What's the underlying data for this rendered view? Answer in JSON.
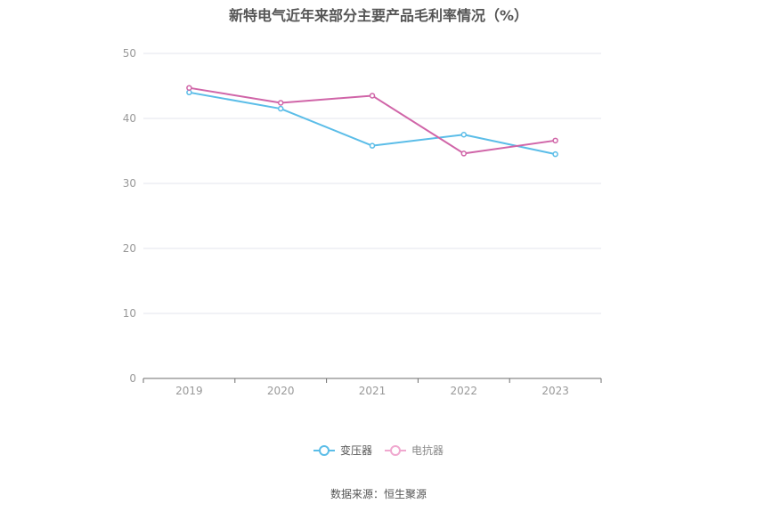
{
  "chart_data": {
    "type": "line",
    "title": "新特电气近年来部分主要产品毛利率情况（%）",
    "categories": [
      "2019",
      "2020",
      "2021",
      "2022",
      "2023"
    ],
    "series": [
      {
        "name": "变压器",
        "color": "#5bbde8",
        "values": [
          44.0,
          41.5,
          35.8,
          37.5,
          34.5
        ]
      },
      {
        "name": "电抗器",
        "color": "#d065a8",
        "values": [
          44.7,
          42.4,
          43.5,
          34.6,
          36.6
        ]
      }
    ],
    "ylim": [
      0,
      50
    ],
    "yticks": [
      0,
      10,
      20,
      30,
      40,
      50
    ],
    "grid": true,
    "legend": "bottom-center"
  },
  "legend_off_color": "#f0a8cf",
  "source_text": "数据来源：恒生聚源"
}
